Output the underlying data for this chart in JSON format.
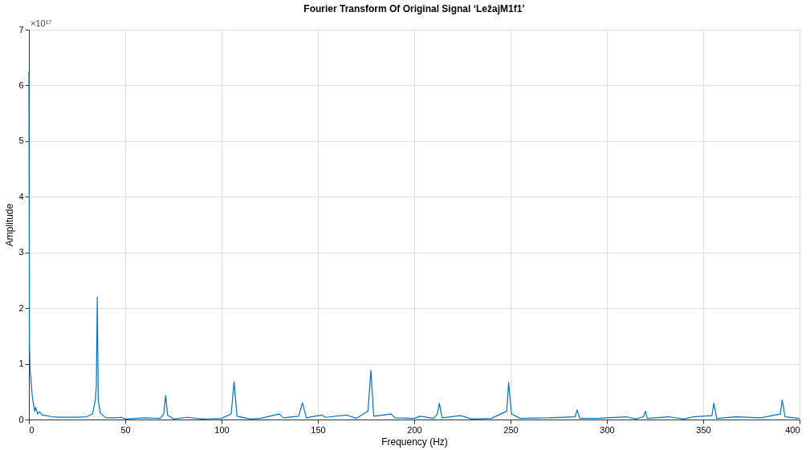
{
  "chart_data": {
    "type": "line",
    "title": "Fourier Transform Of Original Signal ‘LežajM1f1’",
    "xlabel": "Frequency (Hz)",
    "ylabel": "Amplitude",
    "annotations": [
      "×10¹⁷"
    ],
    "x": [
      0,
      0.3,
      0.6,
      1.2,
      1.8,
      2.5,
      3,
      3.5,
      4.5,
      5.5,
      7,
      9,
      12,
      16,
      20,
      25,
      30,
      33,
      34.5,
      35,
      35.5,
      36,
      37,
      40,
      45,
      48,
      50,
      60,
      68,
      70,
      71,
      72,
      75,
      82,
      90,
      100,
      105,
      106.5,
      108,
      115,
      120,
      130,
      132,
      140,
      142,
      144,
      152,
      154,
      165,
      170,
      176,
      177.5,
      179,
      188,
      190,
      200,
      203,
      210,
      212,
      213,
      214.5,
      224,
      230,
      240,
      248,
      249,
      250.5,
      255,
      270,
      283.5,
      284.5,
      286,
      295,
      310,
      315,
      319,
      320,
      321,
      332,
      340,
      345,
      354.5,
      355.5,
      357,
      367,
      380,
      390,
      391,
      392.5,
      400
    ],
    "series": [
      {
        "color": "#0072bd",
        "values": [
          6.25,
          1.35,
          0.9,
          0.65,
          0.4,
          0.25,
          0.15,
          0.22,
          0.1,
          0.14,
          0.08,
          0.07,
          0.05,
          0.04,
          0.04,
          0.04,
          0.05,
          0.1,
          0.35,
          0.6,
          2.2,
          0.35,
          0.12,
          0.03,
          0.03,
          0.04,
          0.01,
          0.03,
          0.02,
          0.1,
          0.43,
          0.08,
          0.01,
          0.04,
          0.01,
          0.02,
          0.1,
          0.68,
          0.06,
          0.01,
          0.02,
          0.1,
          0.03,
          0.06,
          0.3,
          0.03,
          0.08,
          0.04,
          0.08,
          0.02,
          0.15,
          0.88,
          0.06,
          0.1,
          0.03,
          0.02,
          0.06,
          0.02,
          0.1,
          0.29,
          0.03,
          0.07,
          0.01,
          0.02,
          0.15,
          0.66,
          0.1,
          0.02,
          0.03,
          0.05,
          0.17,
          0.02,
          0.02,
          0.05,
          0.01,
          0.05,
          0.15,
          0.02,
          0.05,
          0.01,
          0.05,
          0.07,
          0.29,
          0.02,
          0.05,
          0.03,
          0.1,
          0.35,
          0.05,
          0.02
        ]
      }
    ],
    "xlim": [
      0,
      400
    ],
    "xticks": [
      0,
      50,
      100,
      150,
      200,
      250,
      300,
      350,
      400
    ],
    "ylim": [
      0,
      7
    ],
    "yticks": [
      0,
      1,
      2,
      3,
      4,
      5,
      6,
      7
    ],
    "grid": true,
    "marker": "none",
    "line_style": "solid"
  }
}
